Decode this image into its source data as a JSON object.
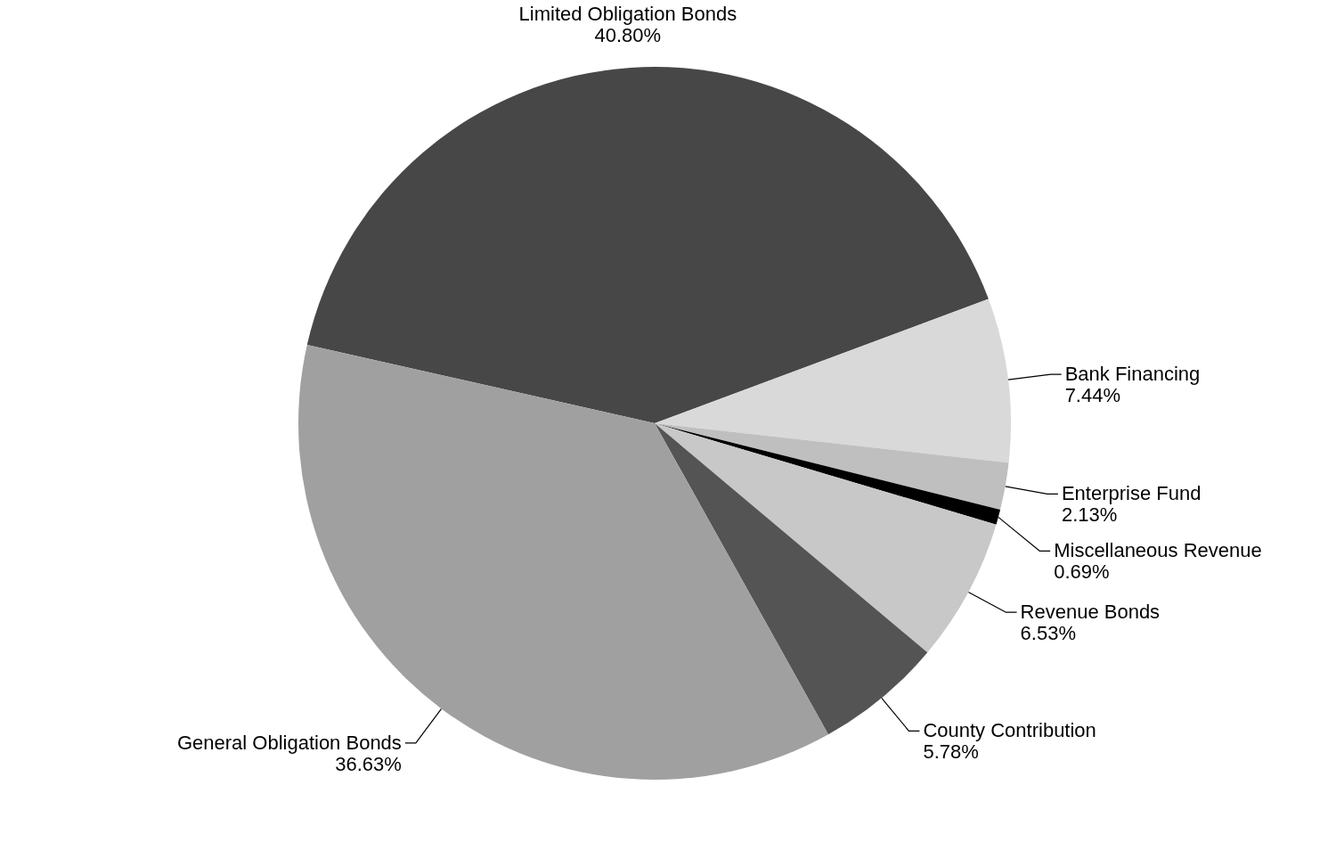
{
  "chart_data": {
    "type": "pie",
    "categories": [
      "Limited Obligation Bonds",
      "Bank Financing",
      "Enterprise Fund",
      "Miscellaneous Revenue",
      "Revenue Bonds",
      "County Contribution",
      "General Obligation Bonds"
    ],
    "values": [
      40.8,
      7.44,
      2.13,
      0.69,
      6.53,
      5.78,
      36.63
    ],
    "value_labels": [
      "40.80%",
      "7.44%",
      "2.13%",
      "0.69%",
      "6.53%",
      "5.78%",
      "36.63%"
    ],
    "colors": [
      "#474747",
      "#d9d9d9",
      "#bfbfbf",
      "#000000",
      "#c8c8c8",
      "#545454",
      "#a0a0a0"
    ],
    "legend": false
  }
}
